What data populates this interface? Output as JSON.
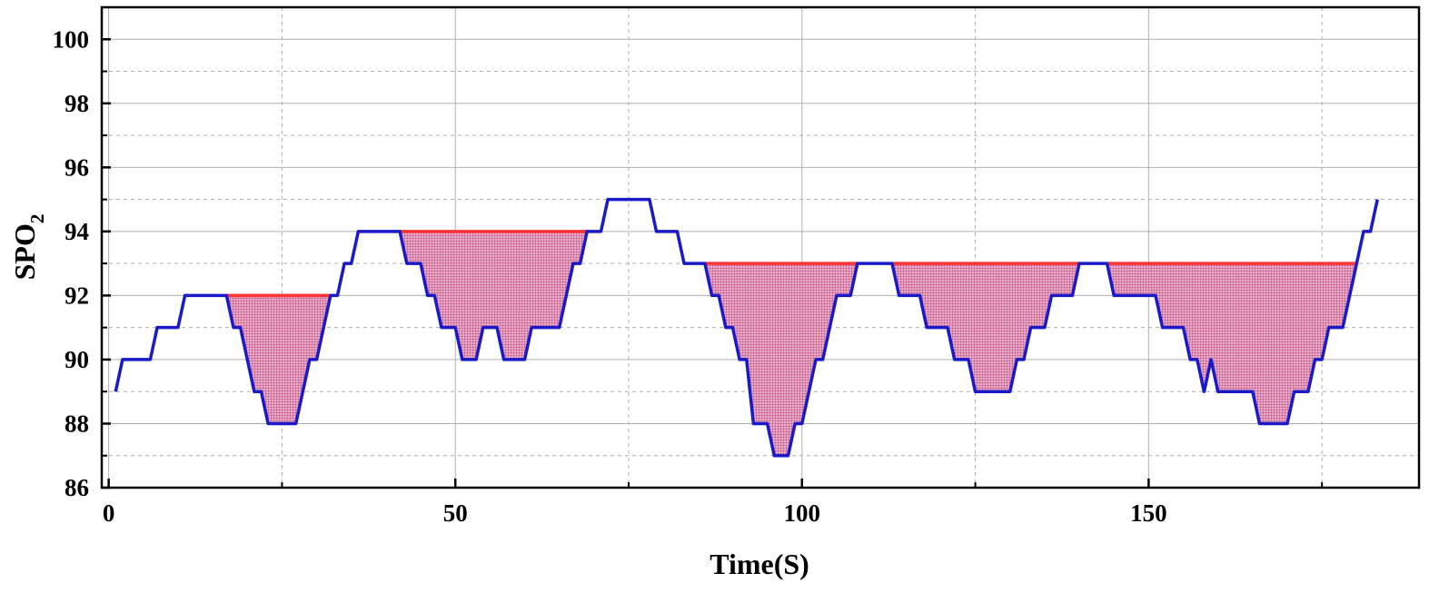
{
  "chart_data": {
    "type": "line",
    "title": "",
    "xlabel": "Time(S)",
    "ylabel": {
      "main": "SPO",
      "subscript": "2"
    },
    "xlim": [
      -1,
      189
    ],
    "ylim": [
      86,
      101
    ],
    "x_ticks": [
      0,
      50,
      100,
      150
    ],
    "x_minor_ticks": [
      25,
      75,
      125,
      175
    ],
    "y_ticks": [
      86,
      88,
      90,
      92,
      94,
      96,
      98,
      100
    ],
    "y_minor_ticks": [
      87,
      89,
      91,
      93,
      95,
      97,
      99
    ],
    "grid": true,
    "colors": {
      "line": "#1a1ac8",
      "baseline": "#ff3333",
      "fill": "#d4789f",
      "grid": "#b0b0b0",
      "axis": "#000000"
    },
    "series": [
      {
        "values": [
          [
            1,
            89
          ],
          [
            2,
            90
          ],
          [
            6,
            90
          ],
          [
            7,
            91
          ],
          [
            10,
            91
          ],
          [
            11,
            92
          ],
          [
            17,
            92
          ],
          [
            18,
            91
          ],
          [
            19,
            91
          ],
          [
            21,
            89
          ],
          [
            22,
            89
          ],
          [
            23,
            88
          ],
          [
            27,
            88
          ],
          [
            29,
            90
          ],
          [
            30,
            90
          ],
          [
            32,
            92
          ],
          [
            33,
            92
          ],
          [
            34,
            93
          ],
          [
            35,
            93
          ],
          [
            36,
            94
          ],
          [
            42,
            94
          ],
          [
            43,
            93
          ],
          [
            45,
            93
          ],
          [
            46,
            92
          ],
          [
            47,
            92
          ],
          [
            48,
            91
          ],
          [
            50,
            91
          ],
          [
            51,
            90
          ],
          [
            53,
            90
          ],
          [
            54,
            91
          ],
          [
            56,
            91
          ],
          [
            57,
            90
          ],
          [
            60,
            90
          ],
          [
            61,
            91
          ],
          [
            65,
            91
          ],
          [
            67,
            93
          ],
          [
            68,
            93
          ],
          [
            69,
            94
          ],
          [
            71,
            94
          ],
          [
            72,
            95
          ],
          [
            78,
            95
          ],
          [
            79,
            94
          ],
          [
            82,
            94
          ],
          [
            83,
            93
          ],
          [
            86,
            93
          ],
          [
            87,
            92
          ],
          [
            88,
            92
          ],
          [
            89,
            91
          ],
          [
            90,
            91
          ],
          [
            91,
            90
          ],
          [
            92,
            90
          ],
          [
            93,
            88
          ],
          [
            95,
            88
          ],
          [
            96,
            87
          ],
          [
            98,
            87
          ],
          [
            99,
            88
          ],
          [
            100,
            88
          ],
          [
            102,
            90
          ],
          [
            103,
            90
          ],
          [
            105,
            92
          ],
          [
            107,
            92
          ],
          [
            108,
            93
          ],
          [
            113,
            93
          ],
          [
            114,
            92
          ],
          [
            117,
            92
          ],
          [
            118,
            91
          ],
          [
            121,
            91
          ],
          [
            122,
            90
          ],
          [
            124,
            90
          ],
          [
            125,
            89
          ],
          [
            130,
            89
          ],
          [
            131,
            90
          ],
          [
            132,
            90
          ],
          [
            133,
            91
          ],
          [
            135,
            91
          ],
          [
            136,
            92
          ],
          [
            139,
            92
          ],
          [
            140,
            93
          ],
          [
            144,
            93
          ],
          [
            145,
            92
          ],
          [
            151,
            92
          ],
          [
            152,
            91
          ],
          [
            155,
            91
          ],
          [
            156,
            90
          ],
          [
            157,
            90
          ],
          [
            158,
            89
          ],
          [
            159,
            90
          ],
          [
            160,
            89
          ],
          [
            165,
            89
          ],
          [
            166,
            88
          ],
          [
            170,
            88
          ],
          [
            171,
            89
          ],
          [
            173,
            89
          ],
          [
            174,
            90
          ],
          [
            175,
            90
          ],
          [
            176,
            91
          ],
          [
            178,
            91
          ],
          [
            180,
            93
          ],
          [
            181,
            94
          ],
          [
            182,
            94
          ],
          [
            183,
            95
          ]
        ]
      }
    ],
    "desaturation_events": [
      {
        "start": 17,
        "end": 32,
        "baseline": 92
      },
      {
        "start": 42,
        "end": 69,
        "baseline": 94
      },
      {
        "start": 86,
        "end": 108,
        "baseline": 93
      },
      {
        "start": 113,
        "end": 140,
        "baseline": 93
      },
      {
        "start": 144,
        "end": 180,
        "baseline": 93
      }
    ]
  }
}
